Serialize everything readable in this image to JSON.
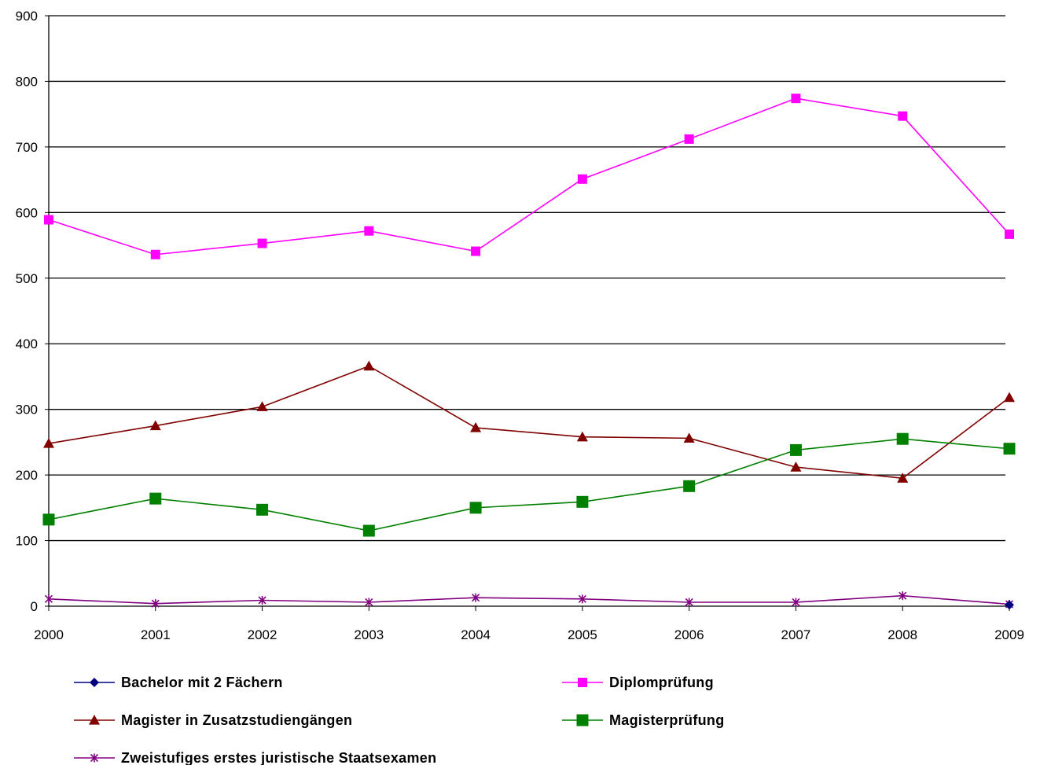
{
  "chart_data": {
    "type": "line",
    "title": "",
    "xlabel": "",
    "ylabel": "",
    "categories": [
      "2000",
      "2001",
      "2002",
      "2003",
      "2004",
      "2005",
      "2006",
      "2007",
      "2008",
      "2009"
    ],
    "ylim": [
      0,
      900
    ],
    "yticks": [
      0,
      100,
      200,
      300,
      400,
      500,
      600,
      700,
      800,
      900
    ],
    "grid": true,
    "legend_position": "bottom",
    "series": [
      {
        "name": "Bachelor mit 2 Fächern",
        "color": "#000080",
        "marker": "diamond",
        "values": [
          null,
          null,
          null,
          null,
          null,
          null,
          null,
          null,
          null,
          2
        ]
      },
      {
        "name": "Diplomprüfung",
        "color": "#FF00FF",
        "marker": "square",
        "values": [
          589,
          536,
          553,
          572,
          541,
          651,
          712,
          774,
          747,
          567
        ]
      },
      {
        "name": "Magister in Zusatzstudiengängen",
        "color": "#800000",
        "marker": "triangle",
        "values": [
          248,
          275,
          304,
          366,
          272,
          258,
          256,
          212,
          195,
          318
        ]
      },
      {
        "name": "Magisterprüfung",
        "color": "#008000",
        "marker": "square",
        "values": [
          132,
          164,
          147,
          115,
          150,
          159,
          183,
          238,
          255,
          240
        ]
      },
      {
        "name": "Zweistufiges erstes juristische Staatsexamen",
        "color": "#800080",
        "marker": "star",
        "values": [
          11,
          4,
          9,
          6,
          13,
          11,
          6,
          6,
          16,
          3
        ]
      }
    ]
  }
}
